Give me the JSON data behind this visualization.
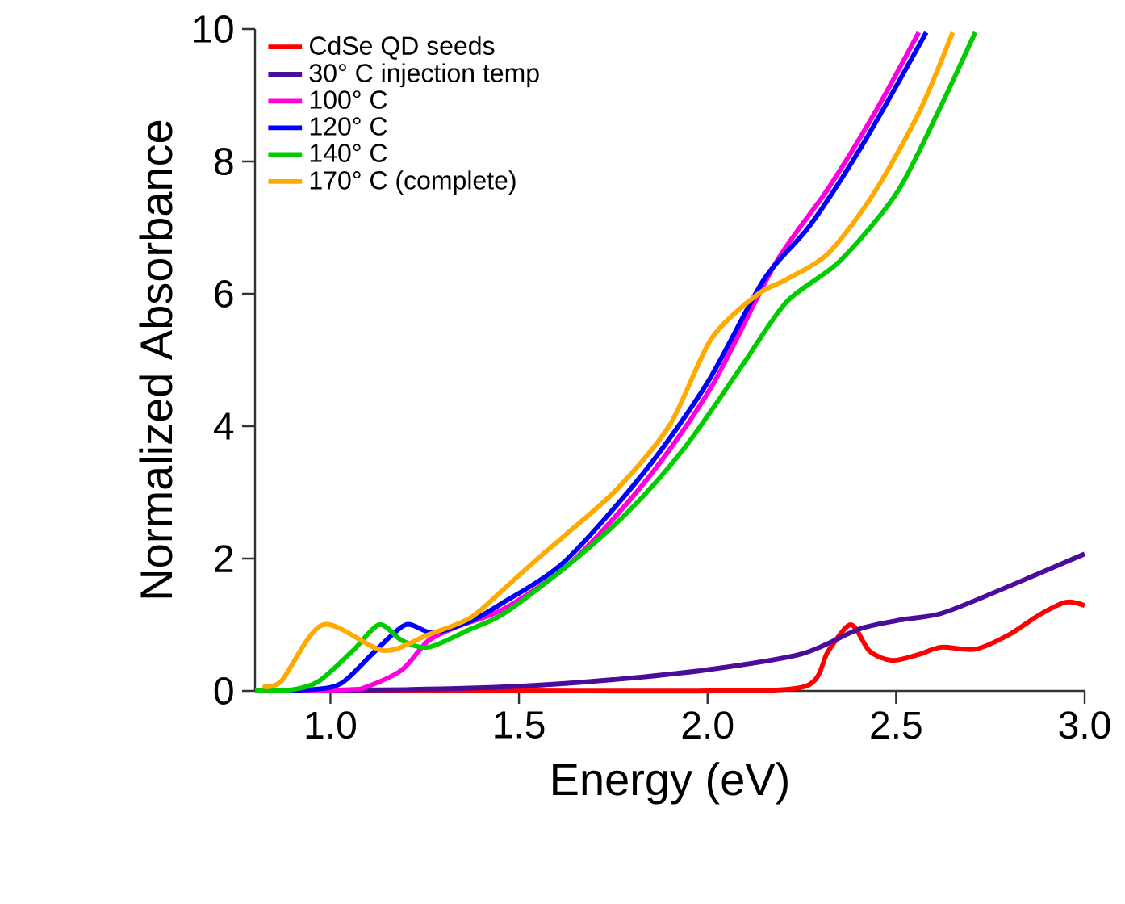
{
  "chart_data": {
    "type": "line",
    "xlabel": "Energy (eV)",
    "ylabel": "Normalized Absorbance",
    "xlim": [
      0.8,
      3.0
    ],
    "ylim": [
      0,
      10
    ],
    "xticks": [
      {
        "value": 1.0,
        "label": "1.0"
      },
      {
        "value": 1.5,
        "label": "1.5"
      },
      {
        "value": 2.0,
        "label": "2.0"
      },
      {
        "value": 2.5,
        "label": "2.5"
      },
      {
        "value": 3.0,
        "label": "3.0"
      }
    ],
    "yticks": [
      0,
      2,
      4,
      6,
      8,
      10
    ],
    "legend": "top left",
    "grid": false,
    "marker": "none",
    "line_style": "solid",
    "series": [
      {
        "name": "CdSe QD seeds",
        "color": "#ff0000",
        "x": [
          0.8,
          1.5,
          2.0,
          2.26,
          2.32,
          2.38,
          2.43,
          2.49,
          2.56,
          2.62,
          2.71,
          2.8,
          2.88,
          2.95,
          3.0
        ],
        "values": [
          0,
          0,
          0,
          0.07,
          0.6,
          1.0,
          0.6,
          0.46,
          0.55,
          0.66,
          0.63,
          0.85,
          1.15,
          1.34,
          1.29
        ]
      },
      {
        "name": "30° C injection temp",
        "color": "#4b0c9c",
        "x": [
          0.8,
          1.2,
          1.5,
          1.75,
          2.0,
          2.25,
          2.4,
          2.51,
          2.62,
          2.77,
          3.0
        ],
        "values": [
          0,
          0.02,
          0.07,
          0.17,
          0.32,
          0.56,
          0.93,
          1.07,
          1.17,
          1.51,
          2.07
        ]
      },
      {
        "name": "100° C",
        "color": "#ff00dd",
        "x": [
          0.8,
          1.05,
          1.1,
          1.19,
          1.26,
          1.34,
          1.46,
          1.64,
          1.84,
          2.01,
          2.18,
          2.32,
          2.44,
          2.56
        ],
        "values": [
          0,
          0.02,
          0.07,
          0.32,
          0.76,
          0.98,
          1.24,
          1.95,
          3.2,
          4.59,
          6.46,
          7.59,
          8.7,
          9.95
        ]
      },
      {
        "name": "120° C",
        "color": "#0000ff",
        "x": [
          0.8,
          0.95,
          1.03,
          1.12,
          1.2,
          1.27,
          1.37,
          1.46,
          1.62,
          1.83,
          2.0,
          2.15,
          2.27,
          2.41,
          2.58
        ],
        "values": [
          0,
          0.02,
          0.12,
          0.61,
          1.0,
          0.88,
          1.05,
          1.34,
          1.95,
          3.29,
          4.66,
          6.22,
          7.02,
          8.24,
          9.95
        ]
      },
      {
        "name": "140° C",
        "color": "#00cc00",
        "x": [
          0.8,
          0.9,
          0.97,
          1.06,
          1.13,
          1.19,
          1.26,
          1.37,
          1.46,
          1.63,
          1.79,
          1.94,
          2.09,
          2.21,
          2.35,
          2.5,
          2.61,
          2.71
        ],
        "values": [
          0,
          0.02,
          0.15,
          0.61,
          1.0,
          0.76,
          0.66,
          0.93,
          1.17,
          1.9,
          2.71,
          3.68,
          4.9,
          5.88,
          6.49,
          7.51,
          8.73,
          9.95
        ]
      },
      {
        "name": "170° C (complete)",
        "color": "#ffaa00",
        "x": [
          0.82,
          0.87,
          0.98,
          1.14,
          1.26,
          1.37,
          1.46,
          1.54,
          1.63,
          1.76,
          1.9,
          2.01,
          2.13,
          2.21,
          2.32,
          2.44,
          2.56,
          2.65
        ],
        "values": [
          0.07,
          0.15,
          1.0,
          0.61,
          0.85,
          1.1,
          1.54,
          1.95,
          2.39,
          3.05,
          4.02,
          5.32,
          5.98,
          6.22,
          6.61,
          7.51,
          8.73,
          9.95
        ]
      }
    ]
  }
}
